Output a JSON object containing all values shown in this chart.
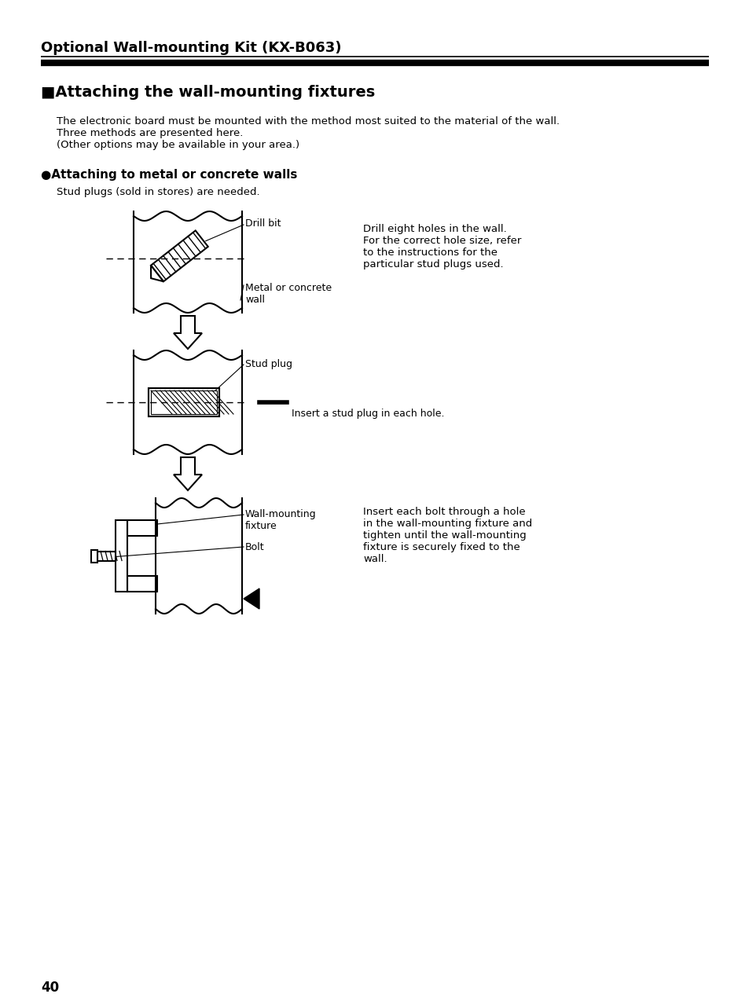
{
  "title": "Optional Wall-mounting Kit (KX-B063)",
  "section_title": "■Attaching the wall-mounting fixtures",
  "body_text": [
    "The electronic board must be mounted with the method most suited to the material of the wall.",
    "Three methods are presented here.",
    "(Other options may be available in your area.)"
  ],
  "subsection_title": "●Attaching to metal or concrete walls",
  "stud_text": "Stud plugs (sold in stores) are needed.",
  "label_drill": "Drill bit",
  "label_metal": "Metal or concrete\nwall",
  "label_stud": "Stud plug",
  "label_insert": "Insert a stud plug in each hole.",
  "label_wall_fixture": "Wall-mounting\nfixture",
  "label_bolt": "Bolt",
  "right_text_1": "Drill eight holes in the wall.\nFor the correct hole size, refer\nto the instructions for the\nparticular stud plugs used.",
  "right_text_2": "Insert each bolt through a hole\nin the wall-mounting fixture and\ntighten until the wall-mounting\nfixture is securely fixed to the\nwall.",
  "page_number": "40",
  "bg_color": "#ffffff",
  "text_color": "#000000"
}
